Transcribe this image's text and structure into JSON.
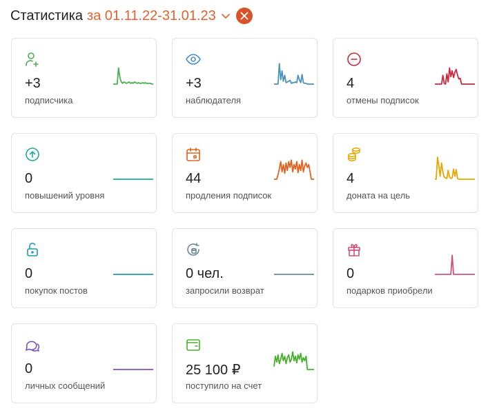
{
  "header": {
    "title": "Статистика",
    "period": "за 01.11.22-31.01.23"
  },
  "cards": [
    {
      "value": "+3",
      "label": "подписчика",
      "icon": "user-plus-icon",
      "color": "#4caf50",
      "trend": [
        0,
        0,
        0,
        0,
        22,
        9,
        3,
        1,
        3,
        2,
        1,
        2,
        3,
        1,
        2,
        1,
        3,
        2,
        1,
        2,
        1,
        1,
        2,
        1,
        2,
        1,
        1,
        1,
        1,
        0,
        0
      ]
    },
    {
      "value": "+3",
      "label": "наблюдателя",
      "icon": "eye-icon",
      "color": "#4a90c0",
      "trend": [
        0,
        0,
        0,
        0,
        28,
        6,
        18,
        4,
        12,
        2,
        3,
        4,
        5,
        1,
        2,
        2,
        3,
        2,
        12,
        6,
        2,
        13,
        2,
        1,
        1,
        0,
        0,
        0,
        0,
        0,
        0
      ]
    },
    {
      "value": "4",
      "label": "отмены подписок",
      "icon": "minus-circle-icon",
      "color": "#d0273d",
      "trend": [
        0,
        0,
        0,
        0,
        0,
        0,
        12,
        1,
        0,
        14,
        3,
        22,
        10,
        18,
        9,
        16,
        20,
        12,
        7,
        8,
        0,
        0,
        0,
        0,
        0,
        0,
        0,
        0,
        0,
        0,
        0
      ]
    },
    {
      "value": "0",
      "label": "повышений уровня",
      "icon": "arrow-up-circle-icon",
      "color": "#1aab9b",
      "trend": [
        0,
        0,
        0,
        0,
        0,
        0,
        0,
        0,
        0,
        0,
        0,
        0,
        0,
        0,
        0,
        0,
        0,
        0,
        0,
        0,
        0,
        0,
        0,
        0,
        0,
        0,
        0,
        0,
        0,
        0,
        0
      ]
    },
    {
      "value": "44",
      "label": "продления подписок",
      "icon": "calendar-icon",
      "color": "#e8601c",
      "trend": [
        0,
        0,
        0,
        6,
        14,
        24,
        10,
        20,
        8,
        22,
        12,
        24,
        16,
        26,
        10,
        20,
        14,
        24,
        9,
        20,
        12,
        26,
        10,
        18,
        22,
        16,
        20,
        10,
        0,
        0,
        0
      ]
    },
    {
      "value": "4",
      "label": "доната на цель",
      "icon": "coins-icon",
      "color": "#e5a800",
      "trend": [
        0,
        0,
        30,
        18,
        4,
        22,
        10,
        3,
        2,
        1,
        12,
        3,
        1,
        2,
        14,
        4,
        13,
        1,
        0,
        0,
        0,
        0,
        0,
        0,
        0,
        0,
        0,
        0,
        0,
        0,
        0
      ]
    },
    {
      "value": "0",
      "label": "покупок постов",
      "icon": "unlock-icon",
      "color": "#1a9bb8",
      "trend": [
        0,
        0,
        0,
        0,
        0,
        0,
        0,
        0,
        0,
        0,
        0,
        0,
        0,
        0,
        0,
        0,
        0,
        0,
        0,
        0,
        0,
        0,
        0,
        0,
        0,
        0,
        0,
        0,
        0,
        0,
        0
      ]
    },
    {
      "value": "0 чел.",
      "label": "запросили возврат",
      "icon": "refund-icon",
      "color": "#6a8a93",
      "trend": [
        0,
        0,
        0,
        0,
        0,
        0,
        0,
        0,
        0,
        0,
        0,
        0,
        0,
        0,
        0,
        0,
        0,
        0,
        0,
        0,
        0,
        0,
        0,
        0,
        0,
        0,
        0,
        0,
        0,
        0,
        0
      ]
    },
    {
      "value": "0",
      "label": "подарков приобрели",
      "icon": "gift-icon",
      "color": "#d0507a",
      "trend": [
        0,
        0,
        0,
        0,
        0,
        0,
        0,
        0,
        0,
        0,
        0,
        0,
        0,
        26,
        0,
        0,
        0,
        0,
        0,
        0,
        0,
        0,
        0,
        0,
        0,
        0,
        0,
        0,
        0,
        0,
        0
      ]
    },
    {
      "value": "0",
      "label": "личных сообщений",
      "icon": "chat-icon",
      "color": "#7b52c4",
      "trend": [
        0,
        0,
        0,
        0,
        0,
        0,
        0,
        0,
        0,
        0,
        0,
        0,
        0,
        0,
        0,
        0,
        0,
        0,
        0,
        0,
        0,
        0,
        0,
        0,
        0,
        0,
        0,
        0,
        0,
        0,
        0
      ]
    },
    {
      "value": "25 100 ₽",
      "label": "поступило на счет",
      "icon": "wallet-icon",
      "color": "#47b02a",
      "trend": [
        4,
        18,
        10,
        20,
        8,
        14,
        22,
        12,
        18,
        8,
        16,
        20,
        10,
        14,
        24,
        12,
        18,
        9,
        20,
        14,
        22,
        10,
        16,
        12,
        18,
        0,
        0,
        0,
        0,
        0,
        0
      ]
    }
  ]
}
